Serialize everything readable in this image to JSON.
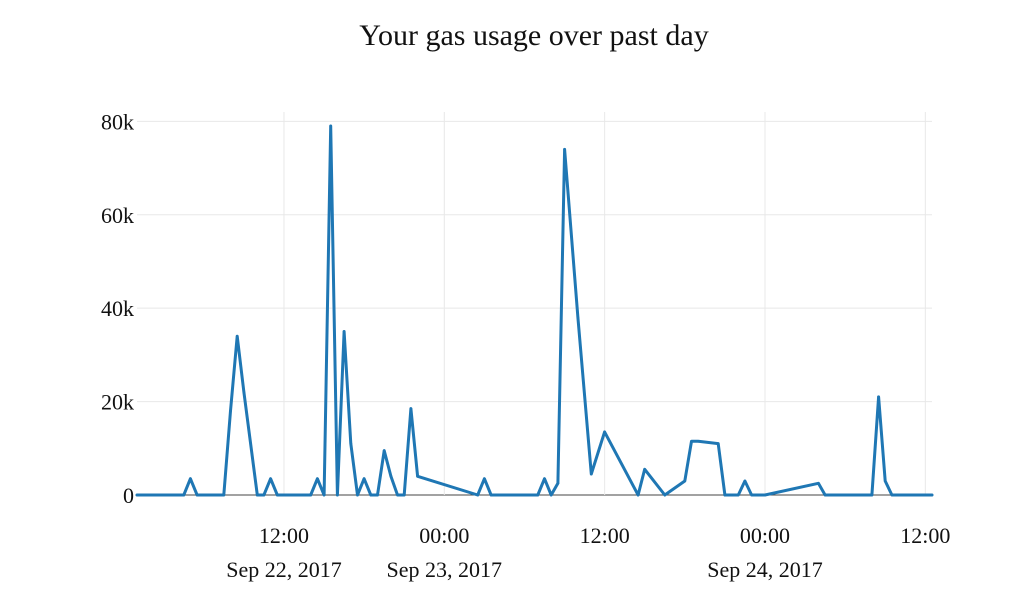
{
  "chart_data": {
    "type": "line",
    "title": "Your gas usage over past day",
    "xlabel": "",
    "ylabel": "",
    "grid": true,
    "legend": "none",
    "color": "#1f77b4",
    "xlim": [
      "2017-09-22 01:00",
      "2017-09-24 12:30"
    ],
    "ylim": [
      0,
      82000
    ],
    "yticks": [
      {
        "value": 0,
        "label": "0"
      },
      {
        "value": 20000,
        "label": "20k"
      },
      {
        "value": 40000,
        "label": "40k"
      },
      {
        "value": 60000,
        "label": "60k"
      },
      {
        "value": 80000,
        "label": "80k"
      }
    ],
    "xticks": [
      {
        "value": "2017-09-22 12:00",
        "label": "12:00",
        "sublabel": "Sep 22, 2017"
      },
      {
        "value": "2017-09-23 00:00",
        "label": "00:00",
        "sublabel": "Sep 23, 2017"
      },
      {
        "value": "2017-09-23 12:00",
        "label": "12:00",
        "sublabel": ""
      },
      {
        "value": "2017-09-24 00:00",
        "label": "00:00",
        "sublabel": "Sep 24, 2017"
      },
      {
        "value": "2017-09-24 12:00",
        "label": "12:00",
        "sublabel": ""
      }
    ],
    "series": [
      {
        "x": [
          "2017-09-22 01:00",
          "2017-09-22 04:30",
          "2017-09-22 05:00",
          "2017-09-22 05:30",
          "2017-09-22 07:30",
          "2017-09-22 08:00",
          "2017-09-22 08:30",
          "2017-09-22 09:00",
          "2017-09-22 10:00",
          "2017-09-22 10:30",
          "2017-09-22 11:00",
          "2017-09-22 11:30",
          "2017-09-22 13:30",
          "2017-09-22 14:00",
          "2017-09-22 14:30",
          "2017-09-22 15:00",
          "2017-09-22 15:30",
          "2017-09-22 16:00",
          "2017-09-22 16:30",
          "2017-09-22 17:00",
          "2017-09-22 17:30",
          "2017-09-22 18:00",
          "2017-09-22 18:30",
          "2017-09-22 19:00",
          "2017-09-22 19:30",
          "2017-09-22 20:00",
          "2017-09-22 20:30",
          "2017-09-22 21:00",
          "2017-09-22 21:30",
          "2017-09-22 22:00",
          "2017-09-23 02:30",
          "2017-09-23 03:00",
          "2017-09-23 03:30",
          "2017-09-23 07:00",
          "2017-09-23 07:30",
          "2017-09-23 08:00",
          "2017-09-23 08:30",
          "2017-09-23 09:00",
          "2017-09-23 10:00",
          "2017-09-23 11:00",
          "2017-09-23 12:00",
          "2017-09-23 14:30",
          "2017-09-23 15:00",
          "2017-09-23 16:30",
          "2017-09-23 18:00",
          "2017-09-23 18:30",
          "2017-09-23 19:00",
          "2017-09-23 20:30",
          "2017-09-23 21:00",
          "2017-09-23 21:30",
          "2017-09-23 22:00",
          "2017-09-23 22:30",
          "2017-09-23 23:00",
          "2017-09-23 23:30",
          "2017-09-24 00:00",
          "2017-09-24 04:00",
          "2017-09-24 04:30",
          "2017-09-24 08:00",
          "2017-09-24 08:30",
          "2017-09-24 09:00",
          "2017-09-24 09:30",
          "2017-09-24 12:30"
        ],
        "values": [
          0,
          0,
          3500,
          0,
          0,
          18000,
          34000,
          22000,
          0,
          0,
          3500,
          0,
          0,
          0,
          3500,
          0,
          79000,
          0,
          35000,
          11000,
          0,
          3500,
          0,
          0,
          9500,
          4000,
          0,
          0,
          18500,
          4000,
          0,
          3500,
          0,
          0,
          3500,
          0,
          2500,
          74000,
          38000,
          4500,
          13500,
          0,
          5500,
          0,
          3000,
          11500,
          11500,
          11000,
          0,
          0,
          0,
          3000,
          0,
          0,
          0,
          2500,
          0,
          0,
          21000,
          3000,
          0,
          0
        ]
      }
    ]
  }
}
